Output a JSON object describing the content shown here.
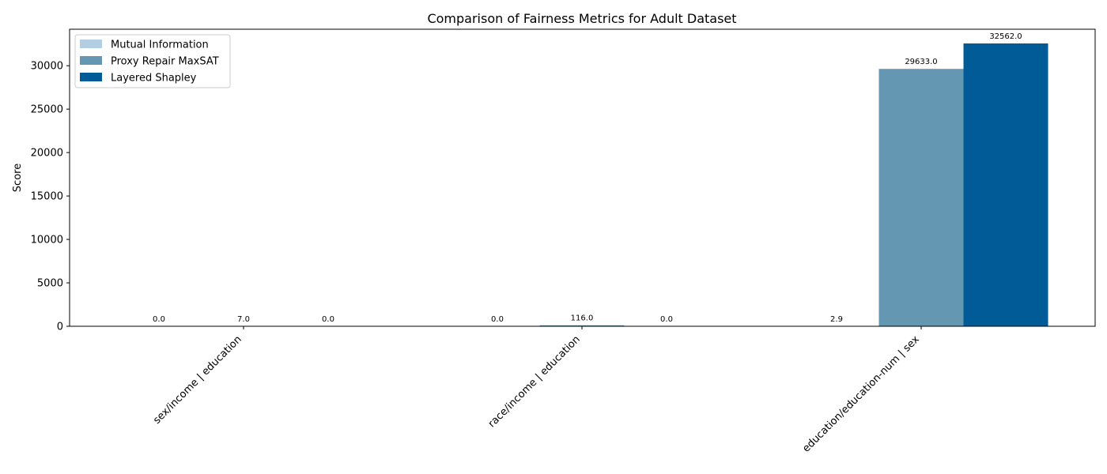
{
  "chart_data": {
    "type": "bar",
    "title": "Comparison of Fairness Metrics for Adult Dataset",
    "xlabel": "",
    "ylabel": "Score",
    "categories": [
      "sex/income | education",
      "race/income | education",
      "education/education-num | sex"
    ],
    "series": [
      {
        "name": "Mutual Information",
        "color": "#b3cde3",
        "values": [
          0.0,
          0.0,
          2.9
        ],
        "labels": [
          "0.0",
          "0.0",
          "2.9"
        ]
      },
      {
        "name": "Proxy Repair MaxSAT",
        "color": "#6497b1",
        "values": [
          7.0,
          116.0,
          29633.0
        ],
        "labels": [
          "7.0",
          "116.0",
          "29633.0"
        ]
      },
      {
        "name": "Layered Shapley",
        "color": "#005b96",
        "values": [
          0.0,
          0.0,
          32562.0
        ],
        "labels": [
          "0.0",
          "0.0",
          "32562.0"
        ]
      }
    ],
    "ylim": [
      0,
      34200
    ],
    "yticks": [
      0,
      5000,
      10000,
      15000,
      20000,
      25000,
      30000
    ],
    "ytick_labels": [
      "0",
      "5000",
      "10000",
      "15000",
      "20000",
      "25000",
      "30000"
    ],
    "grid": false,
    "legend_position": "upper left"
  }
}
